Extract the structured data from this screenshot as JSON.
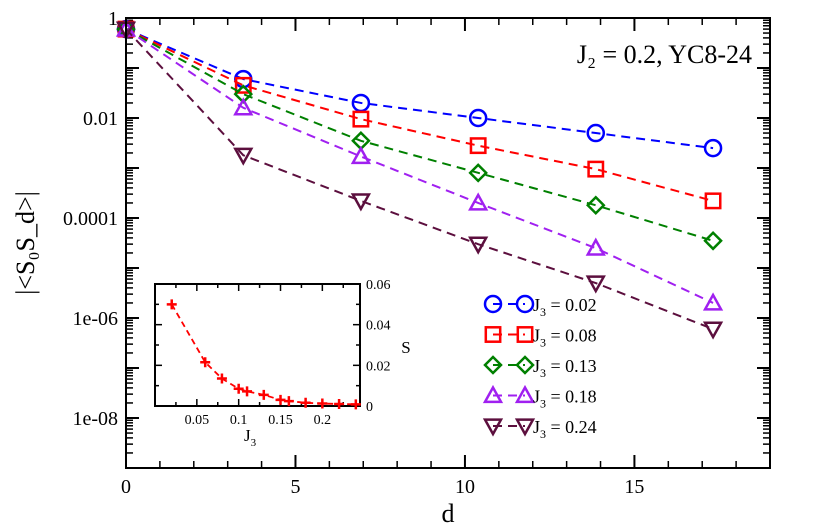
{
  "chart_data": [
    {
      "type": "line",
      "role": "main",
      "annotation": "J₂ = 0.2, YC8-24",
      "xlabel": "d",
      "ylabel": "|<S₀S_d>|",
      "xlim": [
        0,
        19
      ],
      "ylim_log10": [
        -9,
        0
      ],
      "xticks": [
        0,
        5,
        10,
        15
      ],
      "yticks": [
        {
          "value": 1,
          "label": "1"
        },
        {
          "value": 0.01,
          "label": "0.01"
        },
        {
          "value": 0.0001,
          "label": "0.0001"
        },
        {
          "value": 1e-06,
          "label": "1e-06"
        },
        {
          "value": 1e-08,
          "label": "1e-08"
        }
      ],
      "x": [
        0,
        3.46,
        6.93,
        10.39,
        13.86,
        17.32
      ],
      "series": [
        {
          "name": "J3 = 0.02",
          "label_value": "0.02",
          "color": "#0000ff",
          "marker": "circle",
          "values": [
            0.6,
            0.06,
            0.02,
            0.01,
            0.005,
            0.0025
          ]
        },
        {
          "name": "J3 = 0.08",
          "label_value": "0.08",
          "color": "#ff0000",
          "marker": "square",
          "values": [
            0.6,
            0.045,
            0.0095,
            0.0028,
            0.00095,
            0.00022
          ]
        },
        {
          "name": "J3 = 0.13",
          "label_value": "0.13",
          "color": "#008000",
          "marker": "diamond",
          "values": [
            0.6,
            0.03,
            0.0035,
            0.0008,
            0.00018,
            3.5e-05
          ]
        },
        {
          "name": "J3 = 0.18",
          "label_value": "0.18",
          "color": "#a020f0",
          "marker": "triangle-up",
          "values": [
            0.6,
            0.016,
            0.0017,
            0.0002,
            2.5e-05,
            2e-06
          ]
        },
        {
          "name": "J3 = 0.24",
          "label_value": "0.24",
          "color": "#5c0f3e",
          "marker": "triangle-down",
          "values": [
            0.6,
            0.0018,
            0.00022,
            3e-05,
            5e-06,
            6e-07
          ]
        }
      ]
    },
    {
      "type": "line",
      "role": "inset",
      "xlabel": "J3",
      "ylabel": "S",
      "xlim": [
        0,
        0.245
      ],
      "ylim": [
        0,
        0.06
      ],
      "xticks": [
        {
          "value": 0.05,
          "label": "0.05"
        },
        {
          "value": 0.1,
          "label": "0.1"
        },
        {
          "value": 0.15,
          "label": "0.15"
        },
        {
          "value": 0.2,
          "label": "0.2"
        }
      ],
      "yticks": [
        {
          "value": 0,
          "label": "0"
        },
        {
          "value": 0.02,
          "label": "0.02"
        },
        {
          "value": 0.04,
          "label": "0.04"
        },
        {
          "value": 0.06,
          "label": "0.06"
        }
      ],
      "series": [
        {
          "name": "S",
          "color": "#ff0000",
          "marker": "plus",
          "x": [
            0.02,
            0.06,
            0.08,
            0.1,
            0.11,
            0.13,
            0.15,
            0.16,
            0.18,
            0.2,
            0.22,
            0.24
          ],
          "values": [
            0.05,
            0.0215,
            0.0135,
            0.0085,
            0.0072,
            0.0055,
            0.003,
            0.0024,
            0.0016,
            0.0012,
            0.001,
            0.0008
          ]
        }
      ]
    }
  ]
}
